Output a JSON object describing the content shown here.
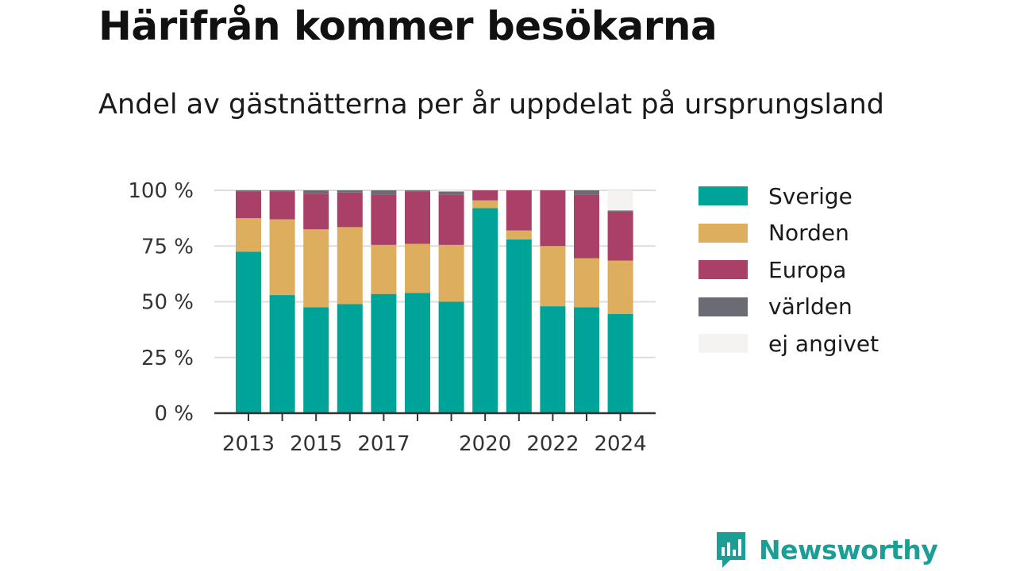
{
  "title": "Härifrån kommer besökarna",
  "subtitle": "Andel av gästnätterna per år uppdelat på ursprungsland",
  "brand": {
    "name": "Newsworthy",
    "icon": "bar-chart-bubble-icon"
  },
  "colors": {
    "Sverige": "#00a398",
    "Norden": "#dcae5e",
    "Europa": "#a84068",
    "världen": "#6b6b73",
    "ej angivet": "#f4f3f1"
  },
  "chart_data": {
    "type": "bar",
    "stacked": true,
    "categories": [
      "2013",
      "2014",
      "2015",
      "2016",
      "2017",
      "2018",
      "2019",
      "2020",
      "2021",
      "2022",
      "2023",
      "2024"
    ],
    "x_tick_labels": [
      "2013",
      "2015",
      "2017",
      "2020",
      "2022",
      "2024"
    ],
    "y_tick_labels": [
      "0 %",
      "25 %",
      "50 %",
      "75 %",
      "100 %"
    ],
    "y_ticks": [
      0,
      25,
      50,
      75,
      100
    ],
    "ylim": [
      0,
      100
    ],
    "grid": true,
    "legend_position": "right",
    "series": [
      {
        "name": "Sverige",
        "values": [
          72.5,
          53,
          47.5,
          49,
          53.5,
          54,
          50,
          92,
          78,
          48,
          47.5,
          44.5
        ]
      },
      {
        "name": "Norden",
        "values": [
          15,
          34,
          35,
          34.5,
          22,
          22,
          25.5,
          3.5,
          4,
          27,
          22,
          24
        ]
      },
      {
        "name": "Europa",
        "values": [
          12,
          12.5,
          16,
          15.5,
          22.5,
          23.5,
          22.5,
          4.5,
          18,
          25,
          28.5,
          22
        ]
      },
      {
        "name": "världen",
        "values": [
          0.5,
          0.5,
          1.5,
          1,
          2,
          0.5,
          1.5,
          0,
          0,
          0,
          2,
          0.5
        ]
      },
      {
        "name": "ej angivet",
        "values": [
          0,
          0,
          0,
          0,
          0,
          0,
          0.5,
          0,
          0,
          0,
          0,
          9
        ]
      }
    ]
  }
}
